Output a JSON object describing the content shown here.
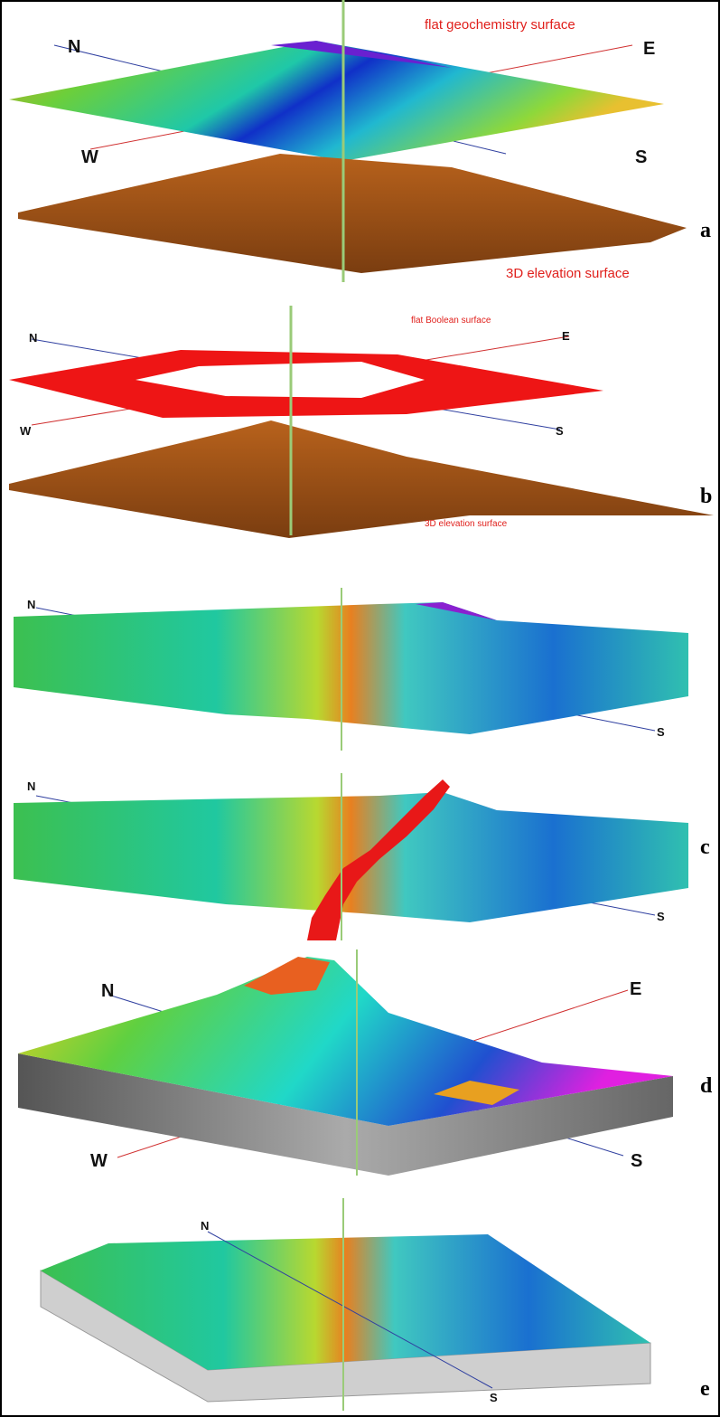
{
  "panels": [
    {
      "label": "a",
      "views": [
        {
          "annotations": [
            "flat geochemistry surface",
            "3D elevation surface"
          ],
          "directions": [
            "N",
            "E",
            "W",
            "S"
          ]
        }
      ]
    },
    {
      "label": "b",
      "views": [
        {
          "annotations": [
            "flat Boolean surface",
            "3D elevation surface"
          ],
          "directions": [
            "N",
            "E",
            "W",
            "S"
          ]
        }
      ]
    },
    {
      "label": "c",
      "views": [
        {
          "directions": [
            "N",
            "S"
          ]
        },
        {
          "directions": [
            "N",
            "S"
          ]
        }
      ]
    },
    {
      "label": "d",
      "views": [
        {
          "directions": [
            "N",
            "E",
            "W",
            "S"
          ]
        }
      ]
    },
    {
      "label": "e",
      "views": [
        {
          "directions": [
            "N",
            "S"
          ]
        }
      ]
    }
  ]
}
